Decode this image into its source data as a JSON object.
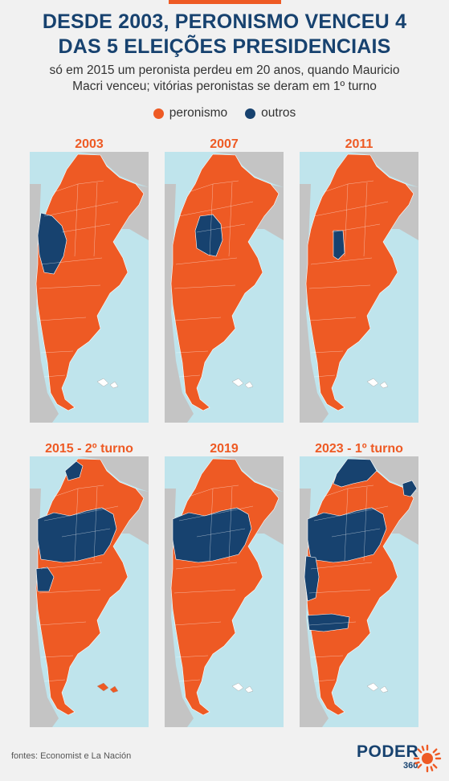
{
  "title_line1": "DESDE 2003, PERONISMO VENCEU 4",
  "title_line2": "DAS 5 ELEIÇÕES PRESIDENCIAIS",
  "subtitle_line1": "só em 2015 um peronista perdeu em 20 anos, quando Mauricio",
  "subtitle_line2": "Macri venceu; vitórias peronistas se deram em 1º turno",
  "legend": [
    {
      "label": "peronismo",
      "color": "#ee5a24"
    },
    {
      "label": "outros",
      "color": "#17426f"
    }
  ],
  "colors": {
    "peronismo": "#ee5a24",
    "outros": "#17426f",
    "sea": "#bfe4ec",
    "neighbor": "#c4c4c4",
    "accent": "#ee5a24"
  },
  "maps": [
    {
      "label": "2003",
      "outros_regions": [
        "cuyo"
      ]
    },
    {
      "label": "2007",
      "outros_regions": [
        "cordoba-sanluis"
      ]
    },
    {
      "label": "2011",
      "outros_regions": [
        "sanluis-strip"
      ]
    },
    {
      "label": "2015 - 2º turno",
      "outros_regions": [
        "jujuy",
        "central-wide",
        "cuyo-south"
      ]
    },
    {
      "label": "2019",
      "outros_regions": [
        "central-wide"
      ]
    },
    {
      "label": "2023 - 1º turno",
      "outros_regions": [
        "north",
        "misiones",
        "central-wide",
        "cuyo-west",
        "rionegro"
      ]
    }
  ],
  "source": "fontes: Economist e La Nación",
  "logo": {
    "name": "PODER",
    "number": "360"
  }
}
